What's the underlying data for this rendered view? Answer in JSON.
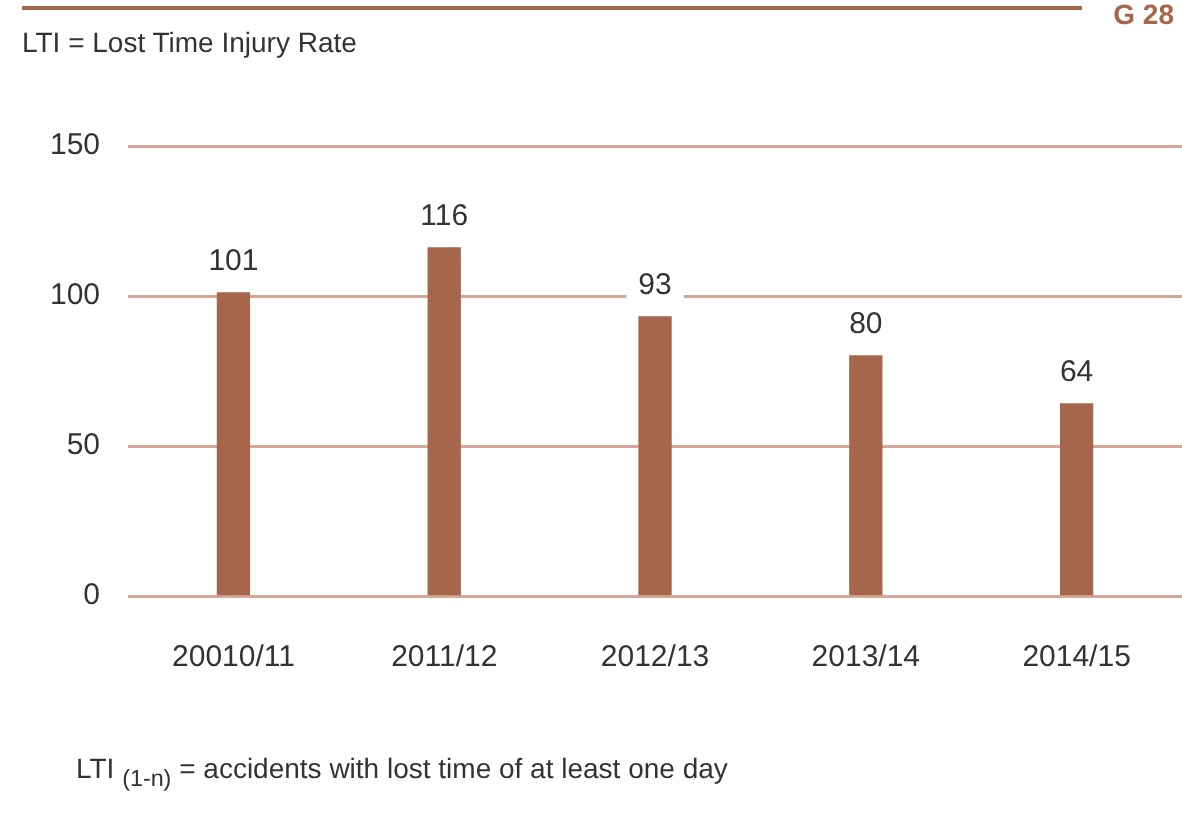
{
  "chart_data": {
    "type": "bar",
    "title": "LTI = Lost Time Injury Rate",
    "categories": [
      "20010/11",
      "2011/12",
      "2012/13",
      "2013/14",
      "2014/15"
    ],
    "values": [
      101,
      116,
      93,
      80,
      64
    ],
    "color": "#a5664c",
    "ylim": [
      0,
      150
    ],
    "yticks": [
      0,
      50,
      100,
      150
    ],
    "grid": "y",
    "data_labels": true,
    "annotations": [
      "G 28",
      "LTI $_{(1-n)}$ = accidents with lost time of at least one day"
    ]
  }
}
